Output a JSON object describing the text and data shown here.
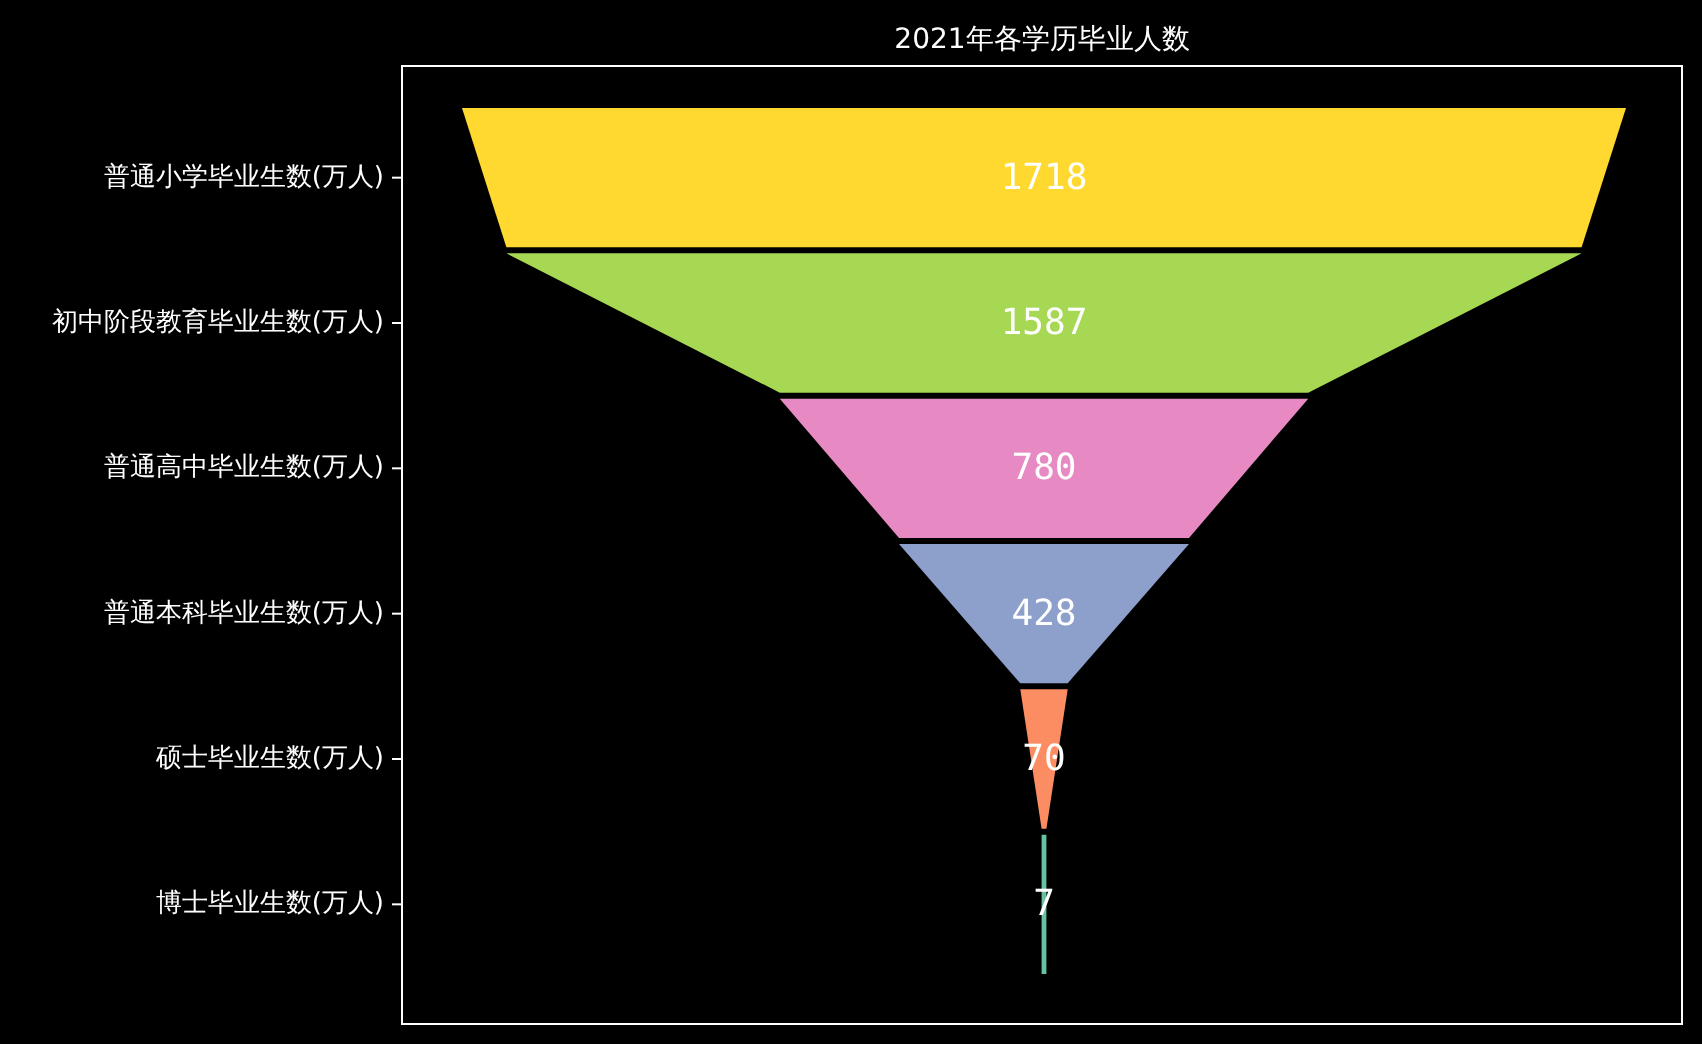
{
  "chart_data": {
    "type": "other",
    "title": "2021年各学历毕业人数",
    "categories": [
      "普通小学毕业生数(万人)",
      "初中阶段教育毕业生数(万人)",
      "普通高中毕业生数(万人)",
      "普通本科毕业生数(万人)",
      "硕士毕业生数(万人)",
      "博士毕业生数(万人)"
    ],
    "values": [
      1718,
      1587,
      780,
      428,
      70,
      7
    ],
    "colors": [
      "#ffd92f",
      "#a6d854",
      "#e78ac3",
      "#8da0cb",
      "#fc8d62",
      "#66c2a5"
    ],
    "data_labels": true
  }
}
